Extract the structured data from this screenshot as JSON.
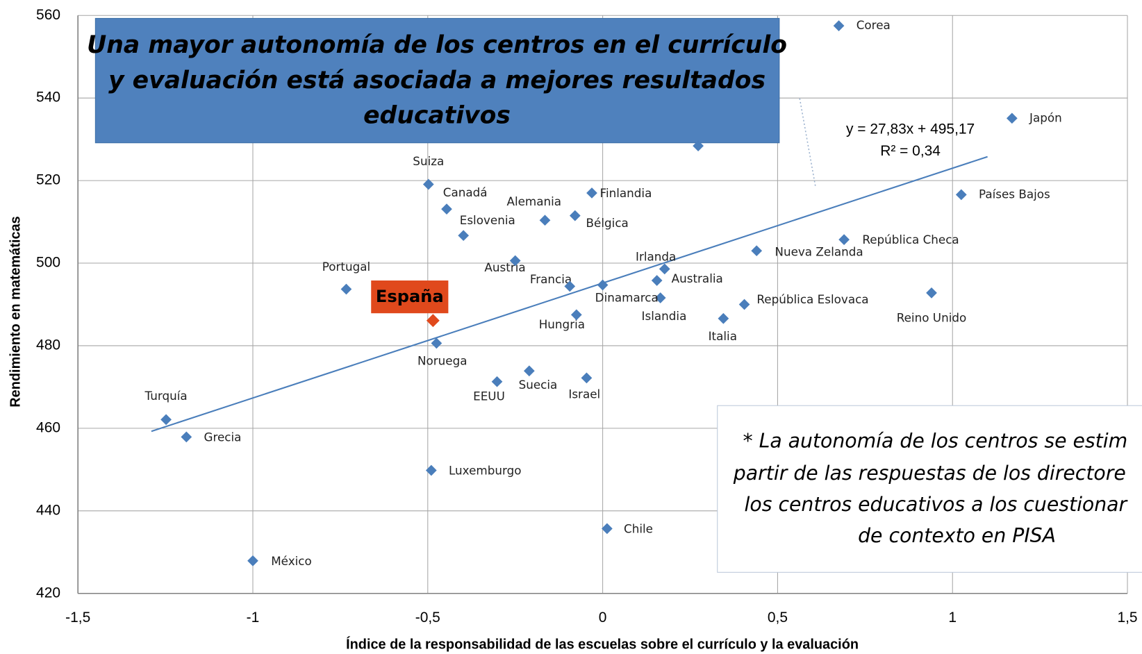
{
  "chart_data": {
    "type": "scatter",
    "title": [
      "Una mayor autonomía de los centros en  el currículo",
      "y evaluación está asociada a mejores resultados",
      "educativos"
    ],
    "note": [
      "* La autonomía de los centros se estim",
      "partir de las respuestas de los directore",
      "los centros educativos a los cuestionar",
      "de contexto en PISA"
    ],
    "xlabel": "Índice de la responsabilidad de las escuelas sobre el currículo y la evaluación",
    "ylabel": "Rendimiento en matemáticas",
    "xlim": [
      -1.5,
      1.5
    ],
    "ylim": [
      420,
      560
    ],
    "xticks": [
      {
        "value": -1.5,
        "label": "-1,5"
      },
      -1,
      {
        "value": -0.5,
        "label": "-0,5"
      },
      0,
      {
        "value": 0.5,
        "label": "0,5"
      },
      1,
      {
        "value": 1.5,
        "label": "1,5"
      }
    ],
    "yticks": [
      420,
      440,
      460,
      480,
      500,
      520,
      540,
      560
    ],
    "grid": true,
    "labels": [
      "Corea",
      "Japón",
      "Países Bajos",
      "República Checa",
      "Nueva Zelanda",
      "Reino Unido",
      "República Eslovaca",
      "Italia",
      "Irlanda",
      "Australia",
      "Islandia",
      null,
      "Dinamarca",
      "Finlandia",
      "Bélgica",
      "Alemania",
      "Francia",
      "Hungria",
      "Israel",
      "Austria",
      "Suecia",
      "EEUU",
      "Eslovenia",
      "Canadá",
      "Suiza",
      "España",
      "Noruega",
      "Luxemburgo",
      "Portugal",
      "Chile",
      "México",
      "Turquía",
      "Grecia"
    ],
    "x": [
      0.675,
      1.17,
      1.025,
      0.69,
      0.44,
      0.94,
      0.405,
      0.345,
      0.177,
      0.155,
      0.165,
      0.273,
      0,
      -0.031,
      -0.079,
      -0.165,
      -0.094,
      -0.075,
      -0.046,
      -0.25,
      -0.21,
      -0.302,
      -0.398,
      -0.446,
      -0.498,
      -0.485,
      -0.475,
      -0.49,
      -0.733,
      0.0125,
      -1.0,
      -1.248,
      -1.19
    ],
    "y": [
      557.5,
      535.1,
      516.6,
      505.7,
      503,
      492.8,
      490,
      486.6,
      498.6,
      495.8,
      491.6,
      528.4,
      494.7,
      517,
      511.5,
      510.4,
      494.4,
      487.5,
      472.2,
      500.6,
      473.9,
      471.3,
      506.7,
      513.1,
      519.1,
      486.1,
      480.6,
      449.8,
      493.7,
      435.7,
      427.9,
      462.1,
      457.9
    ],
    "colors": [
      "#4a7ebb",
      "#4a7ebb",
      "#4a7ebb",
      "#4a7ebb",
      "#4a7ebb",
      "#4a7ebb",
      "#4a7ebb",
      "#4a7ebb",
      "#4a7ebb",
      "#4a7ebb",
      "#4a7ebb",
      "#4a7ebb",
      "#4a7ebb",
      "#4a7ebb",
      "#4a7ebb",
      "#4a7ebb",
      "#4a7ebb",
      "#4a7ebb",
      "#4a7ebb",
      "#4a7ebb",
      "#4a7ebb",
      "#4a7ebb",
      "#4a7ebb",
      "#4a7ebb",
      "#4a7ebb",
      "#e0491c",
      "#4a7ebb",
      "#4a7ebb",
      "#4a7ebb",
      "#4a7ebb",
      "#4a7ebb",
      "#4a7ebb",
      "#4a7ebb"
    ],
    "trendline": {
      "equation": "y = 27,83x + 495,17",
      "r2": "R² = 0,34",
      "slope": 27.83,
      "intercept": 495.17,
      "x_range": [
        -1.29,
        1.1
      ],
      "color": "#4a7ebb"
    }
  }
}
